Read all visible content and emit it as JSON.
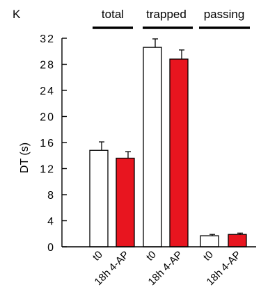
{
  "panel_letter": "K",
  "chart_data": {
    "type": "bar",
    "title": "",
    "xlabel": "",
    "ylabel": "DT (s)",
    "ylim": [
      0,
      32
    ],
    "yticks": [
      0,
      4,
      8,
      12,
      16,
      20,
      24,
      28,
      32
    ],
    "grid": false,
    "groups": [
      "total",
      "trapped",
      "passing"
    ],
    "categories": [
      "t0",
      "18h 4-AP"
    ],
    "bars": [
      {
        "group": "total",
        "condition": "t0",
        "value": 14.8,
        "error": 1.3
      },
      {
        "group": "total",
        "condition": "18h 4-AP",
        "value": 13.6,
        "error": 1.0
      },
      {
        "group": "trapped",
        "condition": "t0",
        "value": 30.6,
        "error": 1.3
      },
      {
        "group": "trapped",
        "condition": "18h 4-AP",
        "value": 28.8,
        "error": 1.4
      },
      {
        "group": "passing",
        "condition": "t0",
        "value": 1.7,
        "error": 0.2
      },
      {
        "group": "passing",
        "condition": "18h 4-AP",
        "value": 1.9,
        "error": 0.2
      }
    ],
    "colors": {
      "t0": "#ffffff",
      "18h 4-AP": "#e8151f"
    }
  }
}
